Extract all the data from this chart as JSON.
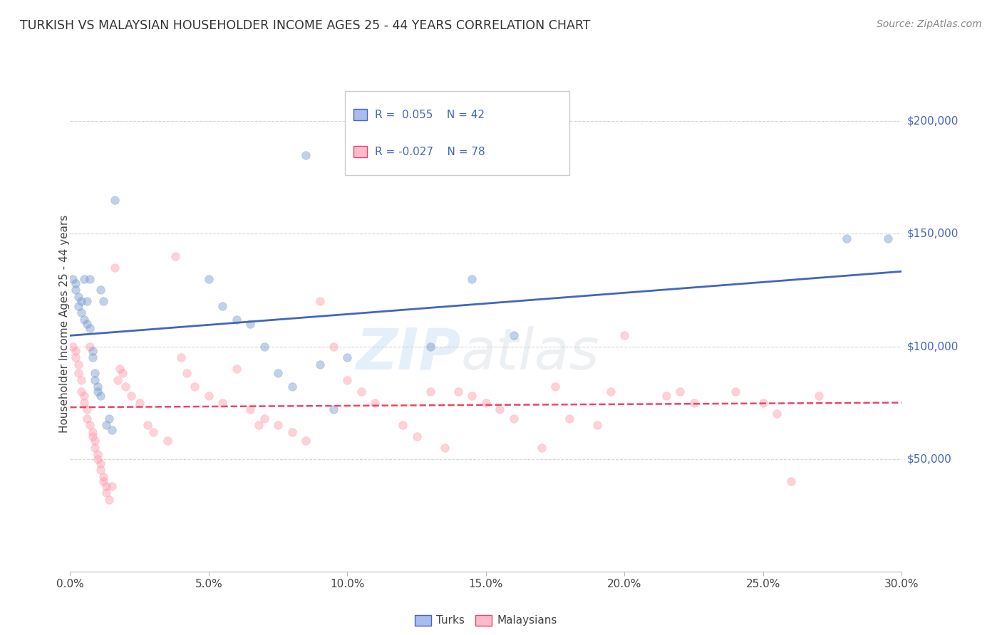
{
  "title": "TURKISH VS MALAYSIAN HOUSEHOLDER INCOME AGES 25 - 44 YEARS CORRELATION CHART",
  "source": "Source: ZipAtlas.com",
  "ylabel": "Householder Income Ages 25 - 44 years",
  "xlabel_ticks": [
    "0.0%",
    "5.0%",
    "10.0%",
    "15.0%",
    "20.0%",
    "25.0%",
    "30.0%"
  ],
  "ytick_labels": [
    "$50,000",
    "$100,000",
    "$150,000",
    "$200,000"
  ],
  "ytick_values": [
    50000,
    100000,
    150000,
    200000
  ],
  "xlim": [
    0.0,
    0.3
  ],
  "ylim": [
    0,
    220000
  ],
  "background_color": "#ffffff",
  "grid_color": "#cccccc",
  "legend_turks_label": "Turks",
  "legend_malaysians_label": "Malaysians",
  "blue_scatter_color": "#7799cc",
  "pink_scatter_color": "#ff99aa",
  "blue_line_color": "#4466bb",
  "pink_line_color": "#ee4466",
  "watermark_zip": "ZIP",
  "watermark_atlas": "atlas",
  "marker_size": 70,
  "marker_alpha": 0.45,
  "turks_x": [
    0.001,
    0.002,
    0.002,
    0.003,
    0.003,
    0.004,
    0.004,
    0.005,
    0.005,
    0.006,
    0.006,
    0.007,
    0.007,
    0.008,
    0.008,
    0.009,
    0.009,
    0.01,
    0.01,
    0.011,
    0.011,
    0.012,
    0.013,
    0.014,
    0.016,
    0.05,
    0.055,
    0.06,
    0.065,
    0.07,
    0.075,
    0.08,
    0.085,
    0.09,
    0.095,
    0.1,
    0.13,
    0.145,
    0.16,
    0.28,
    0.295,
    0.015
  ],
  "turks_y": [
    130000,
    128000,
    125000,
    122000,
    118000,
    120000,
    115000,
    130000,
    112000,
    120000,
    110000,
    108000,
    130000,
    98000,
    95000,
    88000,
    85000,
    80000,
    82000,
    125000,
    78000,
    120000,
    65000,
    68000,
    165000,
    130000,
    118000,
    112000,
    110000,
    100000,
    88000,
    82000,
    185000,
    92000,
    72000,
    95000,
    100000,
    130000,
    105000,
    148000,
    148000,
    63000
  ],
  "malaysians_x": [
    0.001,
    0.002,
    0.002,
    0.003,
    0.003,
    0.004,
    0.004,
    0.005,
    0.005,
    0.006,
    0.006,
    0.007,
    0.007,
    0.008,
    0.008,
    0.009,
    0.009,
    0.01,
    0.01,
    0.011,
    0.011,
    0.012,
    0.012,
    0.013,
    0.013,
    0.014,
    0.015,
    0.016,
    0.017,
    0.018,
    0.019,
    0.02,
    0.022,
    0.025,
    0.028,
    0.03,
    0.035,
    0.038,
    0.04,
    0.042,
    0.045,
    0.05,
    0.055,
    0.06,
    0.065,
    0.068,
    0.07,
    0.075,
    0.08,
    0.085,
    0.09,
    0.095,
    0.1,
    0.105,
    0.11,
    0.12,
    0.125,
    0.13,
    0.135,
    0.14,
    0.145,
    0.15,
    0.155,
    0.16,
    0.17,
    0.175,
    0.18,
    0.19,
    0.195,
    0.2,
    0.215,
    0.22,
    0.225,
    0.24,
    0.25,
    0.255,
    0.26,
    0.27
  ],
  "malaysians_y": [
    100000,
    98000,
    95000,
    92000,
    88000,
    85000,
    80000,
    78000,
    75000,
    72000,
    68000,
    65000,
    100000,
    62000,
    60000,
    58000,
    55000,
    52000,
    50000,
    48000,
    45000,
    42000,
    40000,
    38000,
    35000,
    32000,
    38000,
    135000,
    85000,
    90000,
    88000,
    82000,
    78000,
    75000,
    65000,
    62000,
    58000,
    140000,
    95000,
    88000,
    82000,
    78000,
    75000,
    90000,
    72000,
    65000,
    68000,
    65000,
    62000,
    58000,
    120000,
    100000,
    85000,
    80000,
    75000,
    65000,
    60000,
    80000,
    55000,
    80000,
    78000,
    75000,
    72000,
    68000,
    55000,
    82000,
    68000,
    65000,
    80000,
    105000,
    78000,
    80000,
    75000,
    80000,
    75000,
    70000,
    40000,
    78000
  ]
}
